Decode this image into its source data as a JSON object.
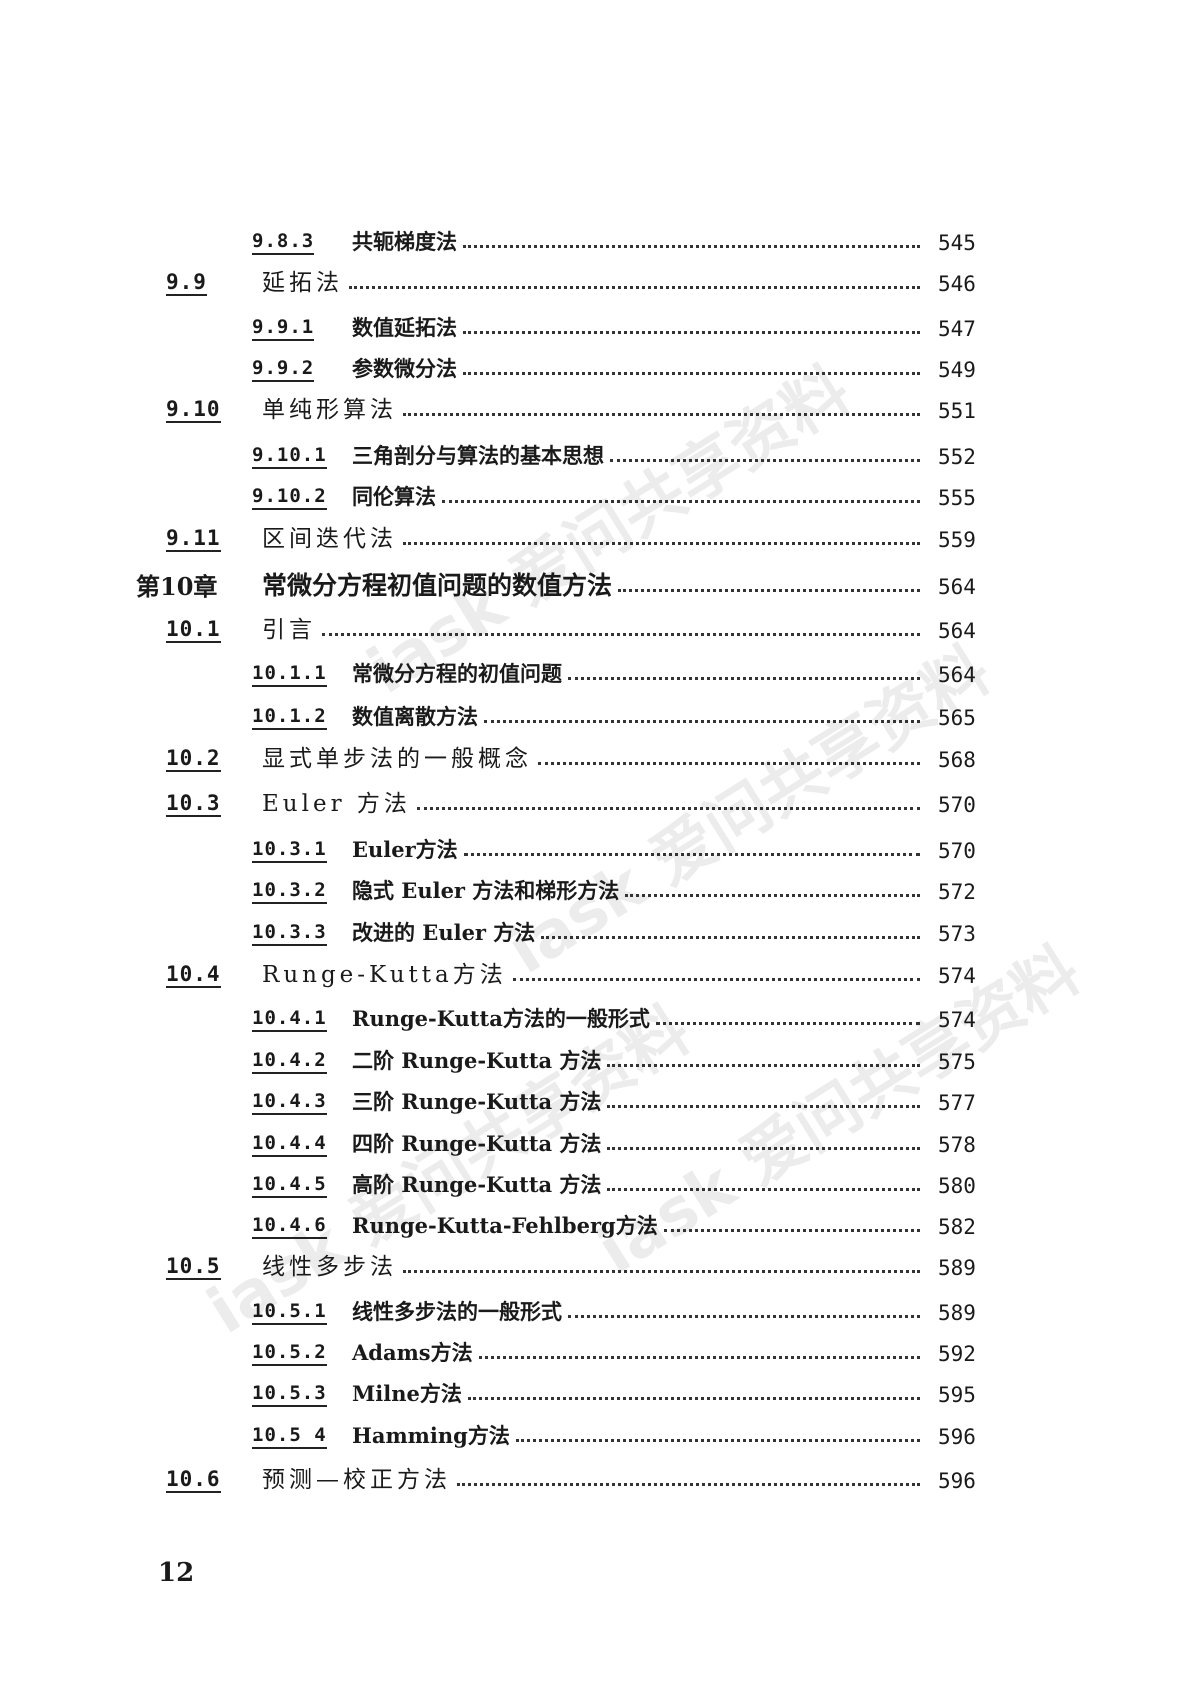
{
  "entries": [
    {
      "num": "9.8.3",
      "title": "共轭梯度法",
      "page": "545"
    },
    {
      "num": "9.9",
      "title": "延拓法",
      "page": "546"
    },
    {
      "num": "9.9.1",
      "title": "数值延拓法",
      "page": "547"
    },
    {
      "num": "9.9.2",
      "title": "参数微分法",
      "page": "549"
    },
    {
      "num": "9.10",
      "title": "单纯形算法",
      "page": "551"
    },
    {
      "num": "9.10.1",
      "title": "三角剖分与算法的基本思想",
      "page": "552"
    },
    {
      "num": "9.10.2",
      "title": "同伦算法",
      "page": "555"
    },
    {
      "num": "9.11",
      "title": "区间迭代法",
      "page": "559"
    },
    {
      "num": "第10章",
      "title": "常微分方程初值问题的数值方法",
      "page": "564"
    },
    {
      "num": "10.1",
      "title": "引言",
      "page": "564"
    },
    {
      "num": "10.1.1",
      "title": "常微分方程的初值问题",
      "page": "564"
    },
    {
      "num": "10.1.2",
      "title": "数值离散方法",
      "page": "565"
    },
    {
      "num": "10.2",
      "title": "显式单步法的一般概念",
      "page": "568"
    },
    {
      "num": "10.3",
      "title": "Euler 方法",
      "page": "570"
    },
    {
      "num": "10.3.1",
      "title": "Euler方法",
      "page": "570"
    },
    {
      "num": "10.3.2",
      "title": "隐式 Euler 方法和梯形方法",
      "page": "572"
    },
    {
      "num": "10.3.3",
      "title": "改进的 Euler 方法",
      "page": "573"
    },
    {
      "num": "10.4",
      "title": "Runge-Kutta方法",
      "page": "574"
    },
    {
      "num": "10.4.1",
      "title": "Runge-Kutta方法的一般形式",
      "page": "574"
    },
    {
      "num": "10.4.2",
      "title": "二阶 Runge-Kutta 方法",
      "page": "575"
    },
    {
      "num": "10.4.3",
      "title": "三阶 Runge-Kutta 方法",
      "page": "577"
    },
    {
      "num": "10.4.4",
      "title": "四阶 Runge-Kutta 方法",
      "page": "578"
    },
    {
      "num": "10.4.5",
      "title": "高阶 Runge-Kutta 方法",
      "page": "580"
    },
    {
      "num": "10.4.6",
      "title": "Runge-Kutta-Fehlberg方法",
      "page": "582"
    },
    {
      "num": "10.5",
      "title": "线性多步法",
      "page": "589"
    },
    {
      "num": "10.5.1",
      "title": "线性多步法的一般形式",
      "page": "589"
    },
    {
      "num": "10.5.2",
      "title": "Adams方法",
      "page": "592"
    },
    {
      "num": "10.5.3",
      "title": "Milne方法",
      "page": "595"
    },
    {
      "num": "10.5 4",
      "title": "Hamming方法",
      "page": "596"
    },
    {
      "num": "10.6",
      "title": "预测—校正方法",
      "page": "596"
    }
  ],
  "page_number": "12",
  "watermark": "iask 爱问共享资料"
}
